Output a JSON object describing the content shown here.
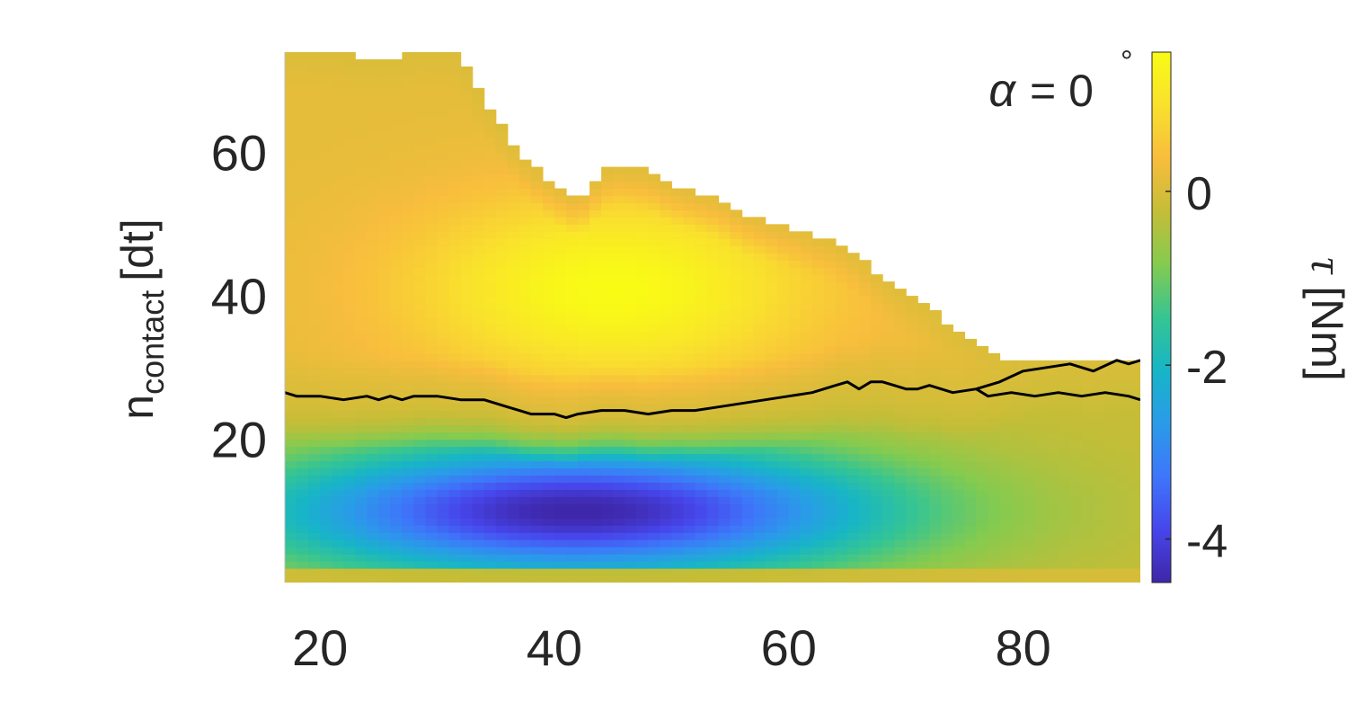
{
  "chart_data": {
    "type": "heatmap",
    "title": "",
    "annotation": {
      "symbol": "α",
      "text": "= 0",
      "degree": "°"
    },
    "xlabel": "",
    "ylabel": {
      "main": "n",
      "subscript": "contact",
      "unit": "[dt]"
    },
    "xlim": [
      17,
      90
    ],
    "ylim": [
      0,
      74
    ],
    "x_ticks": [
      "20",
      "40",
      "60",
      "80"
    ],
    "y_ticks": [
      "20",
      "40",
      "60"
    ],
    "colorbar": {
      "label_symbol": "τ",
      "label_unit": "[Nm]",
      "range": [
        -4.5,
        1.6
      ],
      "ticks": [
        "0",
        "-2",
        "-4"
      ],
      "colormap": "parula",
      "stops": [
        "#3e26a8",
        "#4746eb",
        "#3e76fa",
        "#2a9be9",
        "#17b5c6",
        "#36c592",
        "#84cb4f",
        "#c5bd37",
        "#f8bd3d",
        "#f9e12d",
        "#f9fb15"
      ]
    },
    "upper_boundary": {
      "x": [
        17,
        23,
        27,
        28,
        32,
        33,
        34,
        35,
        36,
        37,
        38,
        40,
        42,
        45,
        48,
        50,
        52,
        54,
        56,
        58,
        60,
        62,
        64,
        66,
        68,
        70,
        72,
        74,
        76,
        78,
        90
      ],
      "y": [
        74,
        73,
        73,
        74,
        73,
        70,
        67,
        65,
        62,
        60,
        58,
        55,
        53,
        58,
        57,
        55,
        54,
        53,
        51,
        50,
        49,
        48,
        47,
        45,
        42,
        40,
        38,
        35,
        33,
        31,
        31
      ]
    },
    "torque_model": {
      "positive_peak": {
        "x": 45,
        "y": 41,
        "value": 1.6
      },
      "negative_peak": {
        "x": 42,
        "y": 10,
        "value": -4.5
      },
      "zero_level": 0
    },
    "zero_contour": {
      "x": [
        17,
        18,
        20,
        22,
        24,
        25,
        26,
        27,
        28,
        30,
        32,
        34,
        36,
        37,
        38,
        40,
        41,
        42,
        44,
        46,
        48,
        50,
        52,
        54,
        56,
        58,
        60,
        62,
        64,
        65,
        66,
        67,
        68,
        69,
        70,
        71,
        72,
        73,
        74,
        76,
        78,
        80,
        82,
        84,
        86,
        88,
        89,
        90
      ],
      "y": [
        26.5,
        26,
        26,
        25.5,
        26,
        25.5,
        26,
        25.5,
        26,
        26,
        25.5,
        25.5,
        24.5,
        24,
        23.5,
        23.5,
        23,
        23.5,
        24,
        24,
        23.5,
        24,
        24,
        24.5,
        25,
        25.5,
        26,
        26.5,
        27.5,
        28,
        27,
        28,
        28,
        27.5,
        27,
        27,
        27.5,
        27,
        26.5,
        27,
        28,
        29.5,
        30,
        30.5,
        29.5,
        31,
        30.5,
        31
      ]
    },
    "zero_contour_2": {
      "x": [
        76,
        77,
        79,
        81,
        83,
        85,
        87,
        89,
        90
      ],
      "y": [
        27,
        26,
        26.5,
        26,
        26.5,
        26,
        26.5,
        26,
        25.5
      ]
    }
  }
}
